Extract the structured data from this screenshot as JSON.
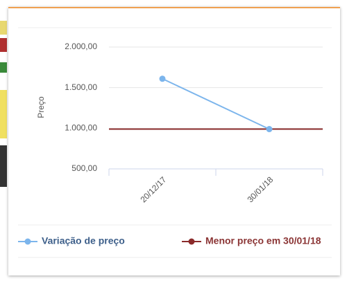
{
  "chart_data": {
    "type": "line",
    "y_axis_label": "Preço",
    "categories": [
      "20/12/17",
      "30/01/18"
    ],
    "series": [
      {
        "name": "Variação de preço",
        "color": "#7cb5ec",
        "values": [
          1610,
          990
        ]
      }
    ],
    "reference_line": {
      "name": "Menor preço em 30/01/18",
      "color": "#8b2b2b",
      "value": 990
    },
    "ylim": [
      500,
      2000
    ],
    "yticks": [
      {
        "value": 2000,
        "label": "2.000,00"
      },
      {
        "value": 1500,
        "label": "1.500,00"
      },
      {
        "value": 1000,
        "label": "1.000,00"
      },
      {
        "value": 500,
        "label": "500,00"
      }
    ],
    "grid": true
  }
}
